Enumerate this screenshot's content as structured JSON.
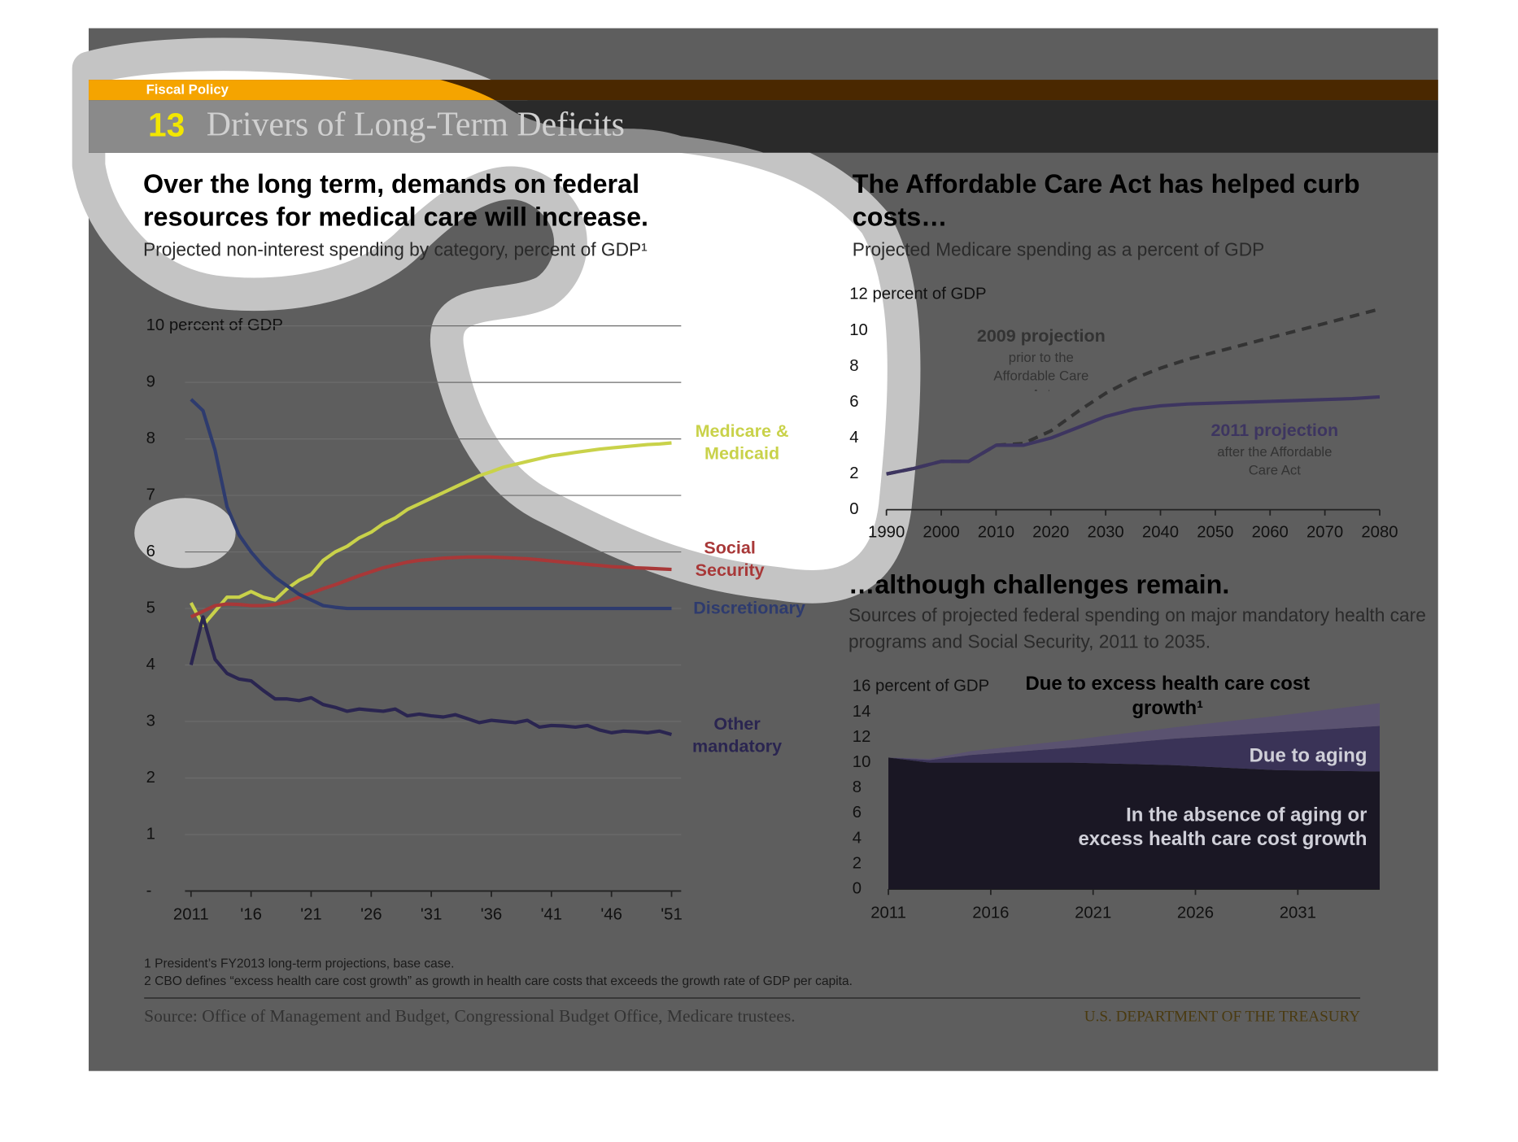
{
  "header": {
    "section": "Fiscal Policy",
    "number": "13",
    "title": "Drivers of Long-Term Deficits"
  },
  "chart_data": [
    {
      "type": "line",
      "title": "Over the long term, demands on federal resources for medical care will increase.",
      "subtitle": "Projected non-interest spending by category, percent of GDP¹",
      "grid": true,
      "xlim": [
        2010.5,
        2051.8
      ],
      "xticks": [
        2011,
        {
          "value": 2016,
          "label": "'16"
        },
        {
          "value": 2021,
          "label": "'21"
        },
        {
          "value": 2026,
          "label": "'26"
        },
        {
          "value": 2031,
          "label": "'31"
        },
        {
          "value": 2036,
          "label": "'36"
        },
        {
          "value": 2041,
          "label": "'41"
        },
        {
          "value": 2046,
          "label": "'46"
        },
        {
          "value": 2051,
          "label": "'51"
        }
      ],
      "ylim": [
        0,
        10
      ],
      "yticks": [
        {
          "value": 0,
          "label": "-"
        },
        1,
        2,
        3,
        4,
        5,
        6,
        7,
        8,
        9,
        {
          "value": 10,
          "label": "10 percent of GDP"
        }
      ],
      "x": [
        2011,
        2012,
        2013,
        2014,
        2015,
        2016,
        2017,
        2018,
        2019,
        2020,
        2021,
        2022,
        2023,
        2024,
        2025,
        2026,
        2027,
        2028,
        2029,
        2030,
        2031,
        2032,
        2033,
        2034,
        2035,
        2036,
        2037,
        2038,
        2039,
        2040,
        2041,
        2042,
        2043,
        2044,
        2045,
        2046,
        2047,
        2048,
        2049,
        2050,
        2051
      ],
      "series": [
        {
          "name": "Medicare & Medicaid",
          "color": "#c9d24a",
          "values": [
            5.1,
            4.7,
            4.95,
            5.2,
            5.2,
            5.3,
            5.2,
            5.15,
            5.35,
            5.5,
            5.6,
            5.85,
            6.0,
            6.1,
            6.25,
            6.35,
            6.5,
            6.6,
            6.75,
            6.85,
            6.95,
            7.05,
            7.15,
            7.25,
            7.35,
            7.42,
            7.5,
            7.55,
            7.6,
            7.65,
            7.7,
            7.73,
            7.76,
            7.79,
            7.82,
            7.84,
            7.86,
            7.88,
            7.9,
            7.91,
            7.93
          ]
        },
        {
          "name": "Social Security",
          "color": "#a83838",
          "values": [
            4.85,
            4.95,
            5.05,
            5.08,
            5.07,
            5.05,
            5.05,
            5.07,
            5.12,
            5.2,
            5.27,
            5.35,
            5.42,
            5.5,
            5.58,
            5.65,
            5.72,
            5.77,
            5.82,
            5.85,
            5.87,
            5.89,
            5.9,
            5.91,
            5.91,
            5.91,
            5.9,
            5.89,
            5.88,
            5.86,
            5.84,
            5.82,
            5.8,
            5.78,
            5.76,
            5.74,
            5.73,
            5.72,
            5.71,
            5.7,
            5.69
          ]
        },
        {
          "name": "Discretionary",
          "color": "#2e3b6e",
          "values": [
            8.7,
            8.5,
            7.8,
            6.8,
            6.3,
            6.0,
            5.75,
            5.55,
            5.4,
            5.25,
            5.15,
            5.05,
            5.02,
            5.0,
            5.0,
            5.0,
            5.0,
            5.0,
            5.0,
            5.0,
            5.0,
            5.0,
            5.0,
            5.0,
            5.0,
            5.0,
            5.0,
            5.0,
            5.0,
            5.0,
            5.0,
            5.0,
            5.0,
            5.0,
            5.0,
            5.0,
            5.0,
            5.0,
            5.0,
            5.0,
            5.0
          ]
        },
        {
          "name": "Other mandatory",
          "color": "#2a2550",
          "values": [
            4.0,
            4.85,
            4.1,
            3.85,
            3.75,
            3.72,
            3.55,
            3.4,
            3.4,
            3.37,
            3.42,
            3.3,
            3.25,
            3.18,
            3.22,
            3.2,
            3.18,
            3.22,
            3.1,
            3.13,
            3.1,
            3.08,
            3.12,
            3.05,
            2.98,
            3.02,
            3.0,
            2.98,
            3.02,
            2.9,
            2.93,
            2.92,
            2.9,
            2.93,
            2.85,
            2.8,
            2.83,
            2.82,
            2.8,
            2.83,
            2.77
          ]
        }
      ]
    },
    {
      "type": "line",
      "title": "The Affordable Care Act has helped curb costs…",
      "subtitle": "Projected Medicare spending as a percent of GDP",
      "grid": false,
      "xlim": [
        1990,
        2080
      ],
      "xticks": [
        1990,
        2000,
        2010,
        2020,
        2030,
        2040,
        2050,
        2060,
        2070,
        2080
      ],
      "ylim": [
        0,
        12
      ],
      "yticks": [
        0,
        2,
        4,
        6,
        8,
        10,
        {
          "value": 12,
          "label": "12 percent of GDP"
        }
      ],
      "x": [
        1990,
        1995,
        2000,
        2005,
        2010,
        2015,
        2020,
        2025,
        2030,
        2035,
        2040,
        2045,
        2050,
        2055,
        2060,
        2065,
        2070,
        2075,
        2080
      ],
      "series": [
        {
          "name": "2009 projection",
          "note": "prior to the Affordable Care Act",
          "color": "#333333",
          "dashed": true,
          "values": [
            2,
            2.3,
            2.7,
            2.7,
            3.6,
            3.7,
            4.4,
            5.5,
            6.5,
            7.3,
            7.9,
            8.4,
            8.8,
            9.2,
            9.6,
            10.0,
            10.4,
            10.8,
            11.2
          ]
        },
        {
          "name": "2011 projection",
          "note": "after the Affordable Care Act",
          "color": "#3d3560",
          "dashed": false,
          "values": [
            2,
            2.3,
            2.7,
            2.7,
            3.6,
            3.6,
            4.0,
            4.6,
            5.2,
            5.6,
            5.8,
            5.9,
            5.95,
            6.0,
            6.05,
            6.1,
            6.15,
            6.2,
            6.3
          ]
        }
      ]
    },
    {
      "type": "area",
      "title": "…although challenges remain.",
      "subtitle": "Sources of projected federal spending on major mandatory health care programs and Social Security, 2011 to 2035.",
      "grid": false,
      "xlim": [
        2011,
        2035
      ],
      "xticks": [
        2011,
        2016,
        2021,
        2026,
        2031
      ],
      "ylim": [
        0,
        16
      ],
      "yticks": [
        0,
        2,
        4,
        6,
        8,
        10,
        12,
        14,
        {
          "value": 16,
          "label": "16 percent of GDP"
        }
      ],
      "x": [
        2011,
        2013,
        2015,
        2020,
        2025,
        2030,
        2035
      ],
      "series": [
        {
          "name": "In the absence of aging or excess health care cost growth",
          "color": "#1a1724",
          "values": [
            10.4,
            10.0,
            10.0,
            10.0,
            9.8,
            9.4,
            9.3
          ]
        },
        {
          "name": "Due to aging",
          "color": "#3a3357",
          "values": [
            0,
            0.2,
            0.6,
            1.2,
            2.1,
            3.0,
            3.6
          ]
        },
        {
          "name": "Due to excess  health care cost growth¹",
          "color": "#5a5270",
          "values": [
            0,
            0.1,
            0.3,
            0.6,
            0.9,
            1.3,
            1.8
          ]
        }
      ]
    }
  ],
  "footnotes": [
    "1 President’s FY2013 long-term projections, base case.",
    "2 CBO defines “excess health care cost growth” as growth in health care costs that exceeds the growth rate of GDP per capita."
  ],
  "source": "Source: Office of Management and Budget, Congressional Budget Office, Medicare trustees.",
  "agency": "U.S. DEPARTMENT OF THE TREASURY"
}
